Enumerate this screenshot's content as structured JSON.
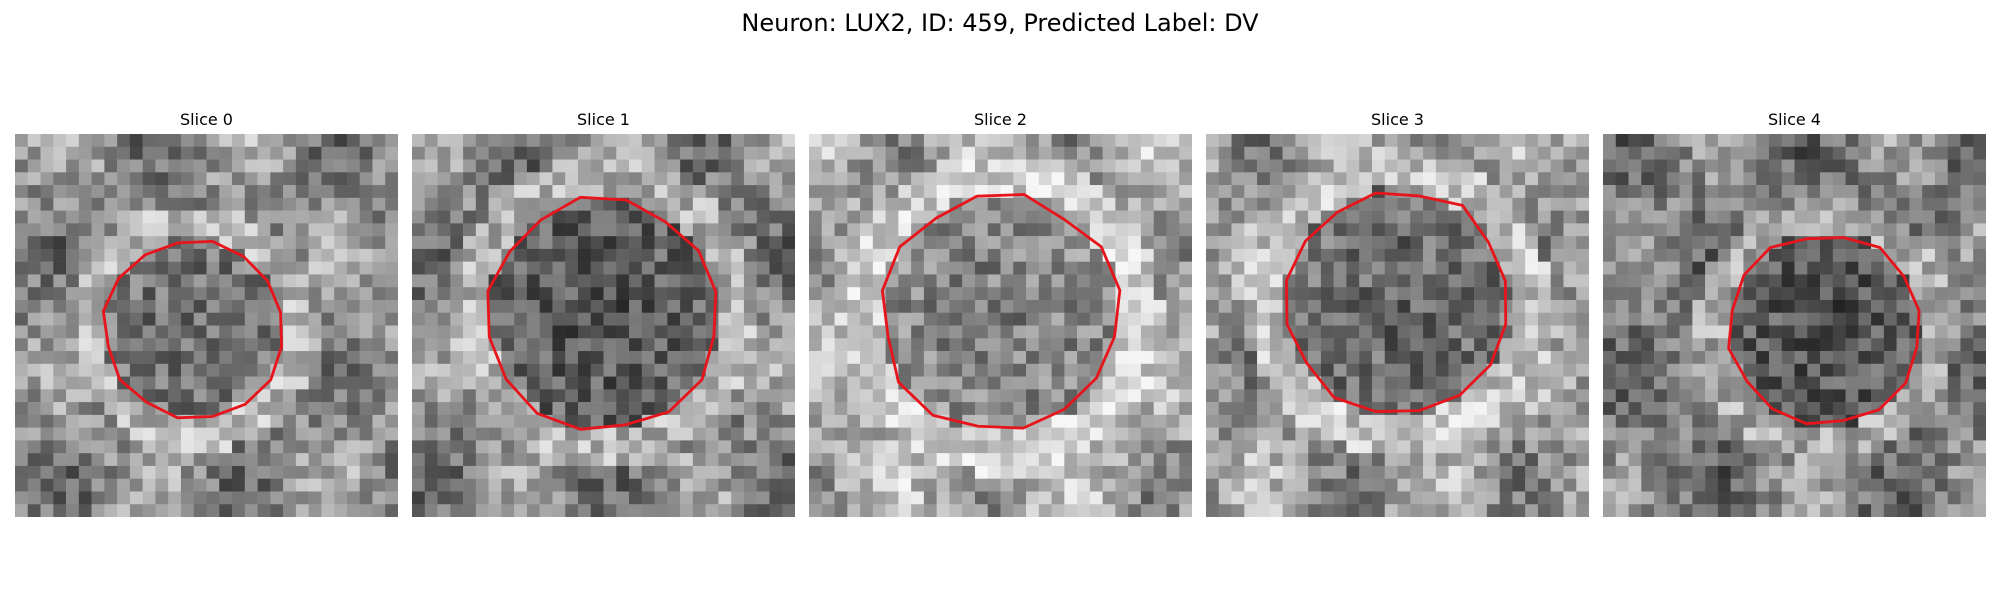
{
  "figure": {
    "title": "Neuron: LUX2, ID: 459, Predicted Label: DV"
  },
  "contour_color": "#e8141c",
  "slices": [
    {
      "title": "Slice 0",
      "center": [
        0.47,
        0.51
      ],
      "radius": 0.235,
      "brightness": 0.6,
      "core_darkness": 0.4
    },
    {
      "title": "Slice 1",
      "center": [
        0.5,
        0.47
      ],
      "radius": 0.3,
      "brightness": 0.58,
      "core_darkness": 0.32
    },
    {
      "title": "Slice 2",
      "center": [
        0.5,
        0.47
      ],
      "radius": 0.31,
      "brightness": 0.7,
      "core_darkness": 0.48
    },
    {
      "title": "Slice 3",
      "center": [
        0.5,
        0.44
      ],
      "radius": 0.295,
      "brightness": 0.65,
      "core_darkness": 0.38
    },
    {
      "title": "Slice 4",
      "center": [
        0.58,
        0.51
      ],
      "radius": 0.25,
      "brightness": 0.55,
      "core_darkness": 0.3
    }
  ]
}
